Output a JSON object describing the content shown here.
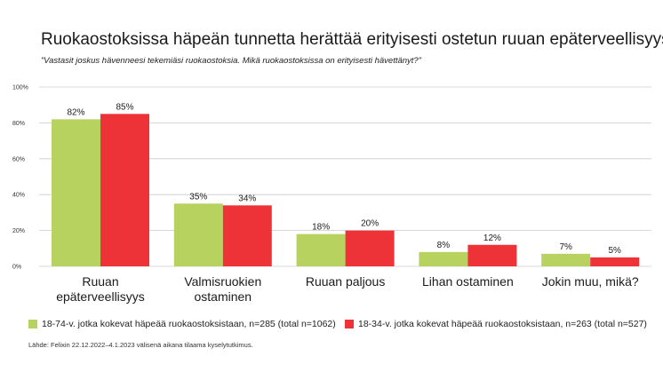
{
  "title": "Ruokaostoksissa häpeän tunnetta herättää erityisesti ostetun ruuan epäterveellisyys",
  "subtitle": "”Vastasit joskus hävenneesi tekemiäsi ruokaostoksia. Mikä ruokaostoksissa on erityisesti hävettänyt?”",
  "source": "Lähde: Felixin 22.12.2022–4.1.2023 välisenä aikana tilaama kyselytutkimus.",
  "colors": {
    "series1": "#b8d25f",
    "series2": "#ee3338",
    "gridline": "#cccccc"
  },
  "chart_data": {
    "type": "bar",
    "categories": [
      [
        "Ruuan",
        "epäterveellisyys"
      ],
      [
        "Valmisruokien",
        "ostaminen"
      ],
      [
        "Ruuan paljous"
      ],
      [
        "Lihan ostaminen"
      ],
      [
        "Jokin muu, mikä?"
      ]
    ],
    "series": [
      {
        "name": "18-74-v. jotka kokevat häpeää ruokaostoksistaan, n=285 (total n=1062)",
        "values": [
          82,
          35,
          18,
          8,
          7
        ],
        "labels": [
          "82%",
          "35%",
          "18%",
          "8%",
          "7%"
        ]
      },
      {
        "name": "18-34-v. jotka kokevat häpeää ruokaostoksistaan, n=263 (total n=527)",
        "values": [
          85,
          34,
          20,
          12,
          5
        ],
        "labels": [
          "85%",
          "34%",
          "20%",
          "12%",
          "5%"
        ]
      }
    ],
    "yticks": [
      "0%",
      "20%",
      "40%",
      "60%",
      "80%",
      "100%"
    ],
    "ylim": [
      0,
      100
    ],
    "grid": true,
    "legend": "bottom"
  }
}
